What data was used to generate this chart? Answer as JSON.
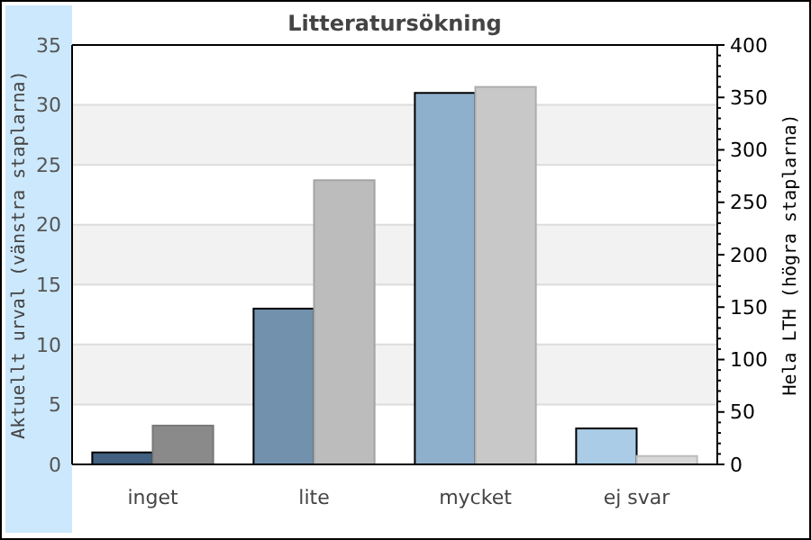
{
  "chart_data": {
    "type": "bar",
    "title": "Litteratursökning",
    "ylabel": "Aktuellt urval (vänstra staplarna)",
    "y2label": "Hela LTH (högra staplarna)",
    "categories": [
      "inget",
      "lite",
      "mycket",
      "ej svar"
    ],
    "series": [
      {
        "colors": [
          "#42607f",
          "#7191ad",
          "#8fb0cc",
          "#aacce6"
        ],
        "values": [
          1,
          13,
          31,
          3
        ]
      },
      {
        "colors": [
          "#8a8a8a",
          "#bcbcbc",
          "#c8c8c8",
          "#d8d8d8"
        ],
        "values": [
          37,
          271,
          360,
          8
        ],
        "axis": "y2"
      }
    ],
    "ylim": [
      0,
      35
    ],
    "yticks": [
      0,
      5,
      10,
      15,
      20,
      25,
      30,
      35
    ],
    "y2lim": [
      0,
      400
    ],
    "y2ticks": [
      0,
      {
        "value": 10,
        "label": null
      },
      {
        "value": 20,
        "label": null
      },
      {
        "value": 30,
        "label": null
      },
      {
        "value": 40,
        "label": null
      },
      50,
      {
        "value": 60,
        "label": null
      },
      {
        "value": 70,
        "label": null
      },
      {
        "value": 80,
        "label": null
      },
      {
        "value": 90,
        "label": null
      },
      100,
      {
        "value": 110,
        "label": null
      },
      {
        "value": 120,
        "label": null
      },
      {
        "value": 130,
        "label": null
      },
      {
        "value": 140,
        "label": null
      },
      150,
      {
        "value": 160,
        "label": null
      },
      {
        "value": 170,
        "label": null
      },
      {
        "value": 180,
        "label": null
      },
      {
        "value": 190,
        "label": null
      },
      200,
      {
        "value": 210,
        "label": null
      },
      {
        "value": 220,
        "label": null
      },
      {
        "value": 230,
        "label": null
      },
      {
        "value": 240,
        "label": null
      },
      250,
      {
        "value": 260,
        "label": null
      },
      {
        "value": 270,
        "label": null
      },
      {
        "value": 280,
        "label": null
      },
      {
        "value": 290,
        "label": null
      },
      300,
      {
        "value": 310,
        "label": null
      },
      {
        "value": 320,
        "label": null
      },
      {
        "value": 330,
        "label": null
      },
      {
        "value": 340,
        "label": null
      },
      350,
      {
        "value": 360,
        "label": null
      },
      {
        "value": 370,
        "label": null
      },
      {
        "value": 380,
        "label": null
      },
      {
        "value": 390,
        "label": null
      },
      400
    ],
    "grid": "y"
  }
}
